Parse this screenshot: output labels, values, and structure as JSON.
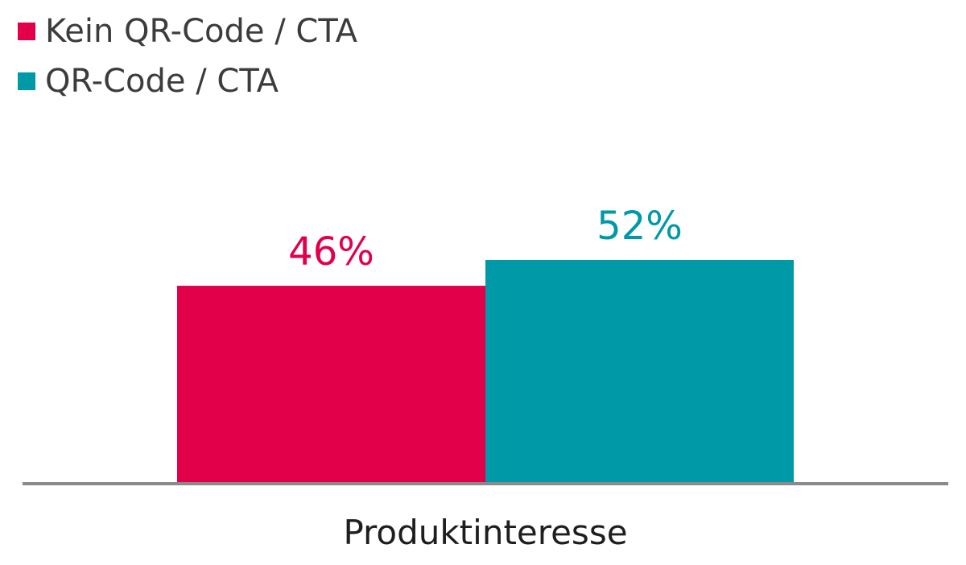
{
  "chart_data": {
    "type": "bar",
    "categories": [
      "Produktinteresse"
    ],
    "series": [
      {
        "name": "Kein QR-Code / CTA",
        "values": [
          46
        ],
        "color": "#e2004a",
        "label": "46%"
      },
      {
        "name": "QR-Code / CTA",
        "values": [
          52
        ],
        "color": "#0099a8",
        "label": "52%"
      }
    ],
    "unit": "%",
    "ylim": [
      0,
      75
    ],
    "grid": false,
    "legend_position": "top-left",
    "axis_color": "#8a8a8a"
  }
}
